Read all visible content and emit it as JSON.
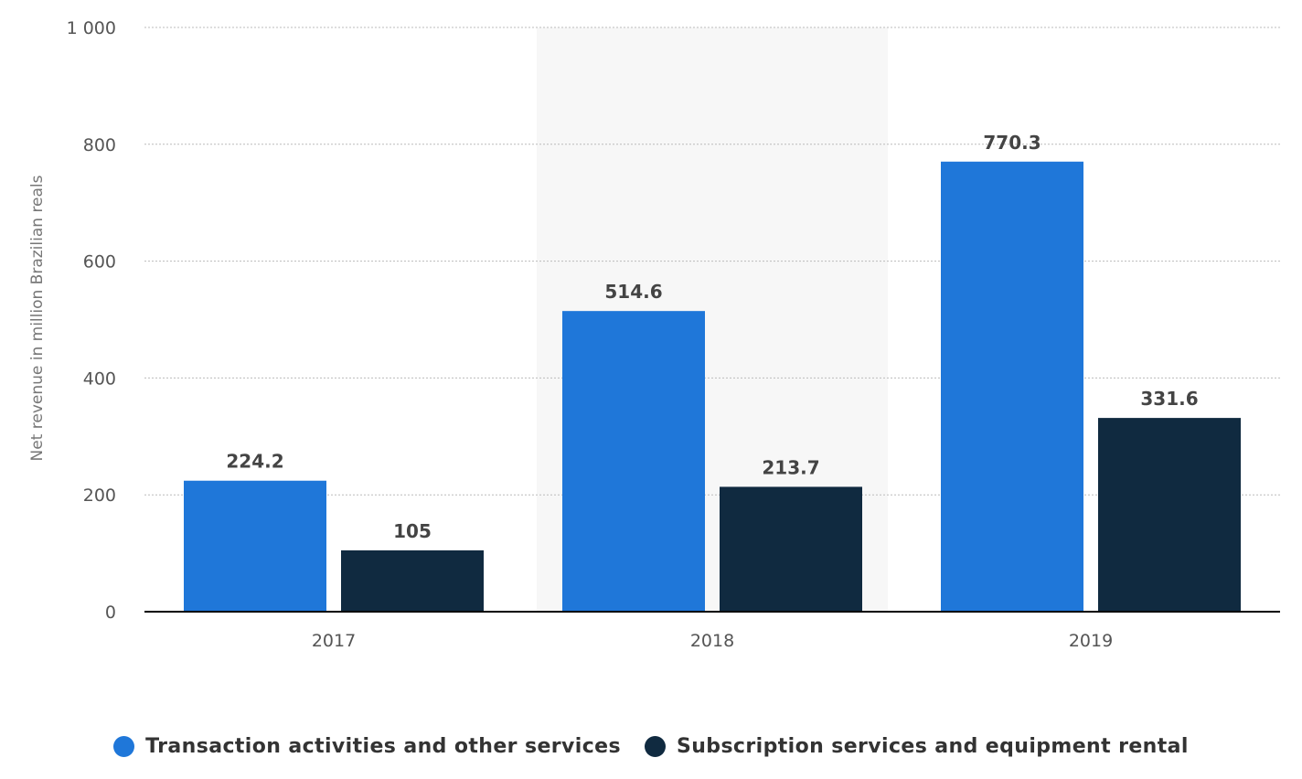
{
  "chart_data": {
    "type": "bar",
    "categories": [
      "2017",
      "2018",
      "2019"
    ],
    "series": [
      {
        "name": "Transaction activities and other services",
        "values": [
          224.2,
          514.6,
          770.3
        ],
        "labels": [
          "224.2",
          "514.6",
          "770.3"
        ]
      },
      {
        "name": "Subscription services and equipment rental",
        "values": [
          105,
          213.7,
          331.6
        ],
        "labels": [
          "105",
          "213.7",
          "331.6"
        ]
      }
    ],
    "title": "",
    "xlabel": "",
    "ylabel": "Net revenue in million Brazilian reals",
    "ylim": [
      0,
      1000
    ],
    "yticks": [
      0,
      200,
      400,
      600,
      800,
      1000
    ],
    "ytick_labels": [
      "0",
      "200",
      "400",
      "600",
      "800",
      "1 000"
    ],
    "grid": true,
    "grid_style": "dotted",
    "highlighted_category": "2018",
    "legend_position": "bottom"
  },
  "colors": {
    "series": [
      "#1f77d9",
      "#102a40"
    ],
    "highlight_band": "#f7f7f7",
    "grid": "#bbbbbb",
    "baseline": "#000000"
  }
}
